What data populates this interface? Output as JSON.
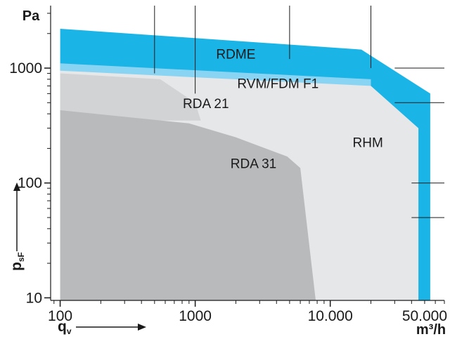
{
  "chart_data": {
    "type": "area",
    "x_scale": "log",
    "y_scale": "log",
    "xlim": [
      85,
      70000
    ],
    "ylim": [
      9.5,
      3500
    ],
    "x_unit": "m³/h",
    "y_unit": "Pa",
    "x_symbol": "q",
    "x_symbol_sub": "v",
    "y_symbol": "p",
    "y_symbol_sub": "sF",
    "x_ticks": [
      {
        "value": 100,
        "label": "100"
      },
      {
        "value": 1000,
        "label": "1000"
      },
      {
        "value": 10000,
        "label": "10.000"
      },
      {
        "value": 50000,
        "label": "50.000"
      }
    ],
    "y_ticks": [
      {
        "value": 10,
        "label": "10"
      },
      {
        "value": 100,
        "label": "100"
      },
      {
        "value": 1000,
        "label": "1000"
      }
    ],
    "series": [
      {
        "name": "RDME",
        "color": "#1ab4e6",
        "label_at": [
          2000,
          1300
        ],
        "points": [
          [
            100,
            2200
          ],
          [
            17000,
            1450
          ],
          [
            55000,
            600
          ],
          [
            55000,
            9.5
          ],
          [
            100,
            9.5
          ]
        ]
      },
      {
        "name": "RVM/FDM F1",
        "color": "#8ad4f3",
        "label_at": [
          4100,
          720
        ],
        "points": [
          [
            100,
            1100
          ],
          [
            20000,
            800
          ],
          [
            20000,
            9.5
          ],
          [
            100,
            9.5
          ]
        ]
      },
      {
        "name": "RHM",
        "color": "#e6e7e9",
        "label_at": [
          19000,
          220
        ],
        "points": [
          [
            100,
            950
          ],
          [
            20000,
            700
          ],
          [
            45000,
            300
          ],
          [
            45000,
            9.5
          ],
          [
            100,
            9.5
          ]
        ]
      },
      {
        "name": "RDA 21",
        "color": "#d2d3d5",
        "label_at": [
          1200,
          480
        ],
        "points": [
          [
            100,
            900
          ],
          [
            550,
            800
          ],
          [
            1000,
            500
          ],
          [
            1100,
            350
          ],
          [
            100,
            350
          ]
        ]
      },
      {
        "name": "RDA 31",
        "color": "#b9babc",
        "label_at": [
          2700,
          145
        ],
        "points": [
          [
            100,
            430
          ],
          [
            900,
            330
          ],
          [
            2000,
            250
          ],
          [
            4800,
            170
          ],
          [
            6000,
            135
          ],
          [
            7800,
            9.5
          ],
          [
            100,
            9.5
          ]
        ]
      }
    ],
    "grid": [
      {
        "orientation": "vertical",
        "value": 500,
        "from": 900,
        "to": 3500
      },
      {
        "orientation": "vertical",
        "value": 1000,
        "from": 600,
        "to": 3500
      },
      {
        "orientation": "vertical",
        "value": 5000,
        "from": 1200,
        "to": 3500
      },
      {
        "orientation": "vertical",
        "value": 20000,
        "from": 1000,
        "to": 3500
      },
      {
        "orientation": "horizontal",
        "value": 1000,
        "from": 30000,
        "to": 70000
      },
      {
        "orientation": "horizontal",
        "value": 500,
        "from": 30000,
        "to": 70000
      },
      {
        "orientation": "horizontal",
        "value": 100,
        "from": 40000,
        "to": 70000
      },
      {
        "orientation": "horizontal",
        "value": 50,
        "from": 40000,
        "to": 70000
      }
    ]
  }
}
